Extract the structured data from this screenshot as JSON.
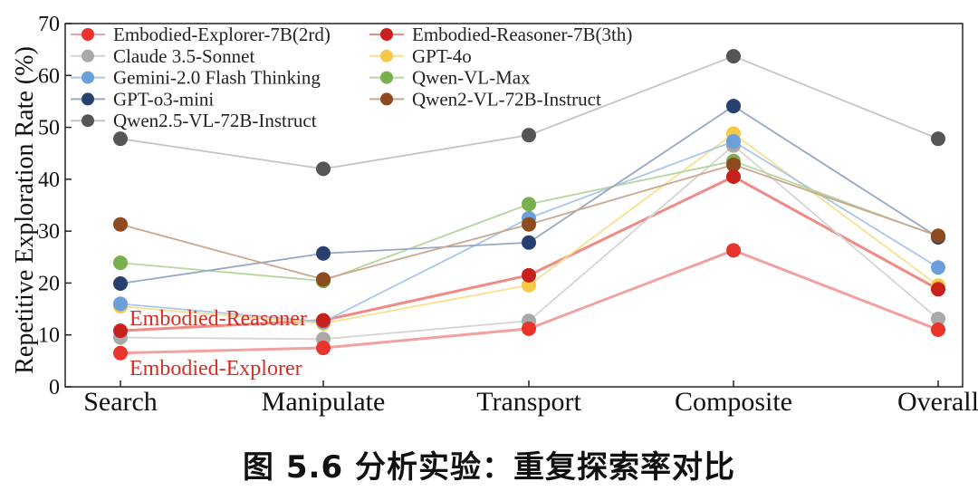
{
  "chart_data": {
    "type": "line",
    "title": "",
    "xlabel": "",
    "ylabel": "Repetitive Exploration Rate (%)",
    "categories": [
      "Search",
      "Manipulate",
      "Transport",
      "Composite",
      "Overall"
    ],
    "ylim": [
      0,
      70
    ],
    "yticks": [
      0,
      10,
      20,
      30,
      40,
      50,
      60,
      70
    ],
    "grid": false,
    "legend_position": "top-left",
    "series": [
      {
        "name": "Embodied-Explorer-7B(2rd)",
        "color": "#e8342a",
        "line_color": "#f3a0a0",
        "values": [
          6.5,
          7.5,
          11.2,
          26.3,
          11.0
        ]
      },
      {
        "name": "Embodied-Reasoner-7B(3th)",
        "color": "#c8201c",
        "line_color": "#f08a85",
        "values": [
          10.8,
          12.8,
          21.5,
          40.5,
          18.8
        ]
      },
      {
        "name": "Claude 3.5-Sonnet",
        "color": "#a9a9a9",
        "line_color": "#d4d4d4",
        "values": [
          9.5,
          9.2,
          12.7,
          46.5,
          13.1
        ]
      },
      {
        "name": "GPT-4o",
        "color": "#f7c846",
        "line_color": "#f9df8e",
        "values": [
          15.5,
          12.2,
          19.6,
          48.8,
          19.5
        ]
      },
      {
        "name": "Gemini-2.0 Flash Thinking",
        "color": "#6a9fdb",
        "line_color": "#a9c6ec",
        "values": [
          16.0,
          12.5,
          32.5,
          47.3,
          23.0
        ]
      },
      {
        "name": "Qwen-VL-Max",
        "color": "#78b04f",
        "line_color": "#b5d69d",
        "values": [
          23.9,
          20.4,
          35.2,
          43.5,
          29.0
        ]
      },
      {
        "name": "GPT-o3-mini",
        "color": "#28406f",
        "line_color": "#98a7c4",
        "values": [
          19.9,
          25.7,
          27.8,
          54.1,
          28.8
        ]
      },
      {
        "name": "Qwen2-VL-72B-Instruct",
        "color": "#8e4b1f",
        "line_color": "#c9a88e",
        "values": [
          31.3,
          20.7,
          31.3,
          42.8,
          29.1
        ]
      },
      {
        "name": "Qwen2.5-VL-72B-Instruct",
        "color": "#555555",
        "line_color": "#c4c4c4",
        "values": [
          47.8,
          42.0,
          48.5,
          63.7,
          47.8
        ]
      }
    ],
    "annotations": [
      {
        "text": "Embodied-Reasoner",
        "color": "#d42e26"
      },
      {
        "text": "Embodied-Explorer",
        "color": "#d42e26"
      }
    ]
  },
  "caption": "图 5.6 分析实验：重复探索率对比"
}
